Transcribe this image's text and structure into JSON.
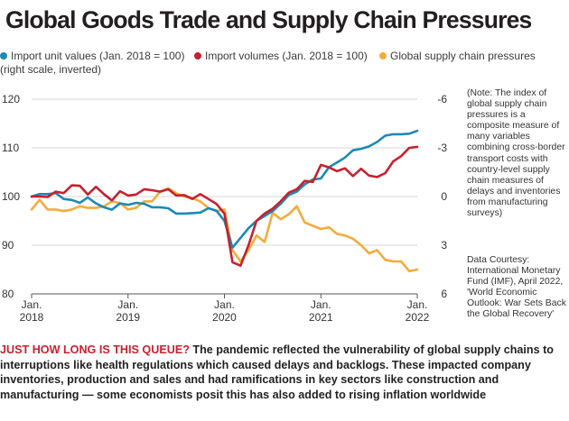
{
  "chart_data": {
    "type": "line",
    "title": "Global Goods Trade and Supply Chain Pressures",
    "x_ticks": [
      {
        "year": 2018,
        "label": [
          "Jan.",
          "2018"
        ]
      },
      {
        "year": 2019,
        "label": [
          "Jan.",
          "2019"
        ]
      },
      {
        "year": 2020,
        "label": [
          "Jan.",
          "2020"
        ]
      },
      {
        "year": 2021,
        "label": [
          "Jan.",
          "2021"
        ]
      },
      {
        "year": 2022,
        "label": [
          "Jan.",
          "2022"
        ]
      }
    ],
    "left_axis": {
      "ylim": [
        80,
        120
      ],
      "ticks": [
        "120",
        "110",
        "100",
        "90",
        "80"
      ]
    },
    "right_axis": {
      "ylim": [
        6,
        -6
      ],
      "inverted": true,
      "ticks": [
        "-6",
        "-3",
        "0",
        "3",
        "6"
      ]
    },
    "legend": [
      {
        "name": "Import unit values (Jan. 2018 = 100)",
        "color": "#1a8ab4"
      },
      {
        "name": "Import volumes (Jan. 2018 = 100)",
        "color": "#c8202e"
      },
      {
        "name": "Global supply chain pressures",
        "color": "#f2ac3b",
        "sub": "(right scale, inverted)"
      }
    ],
    "series": [
      {
        "name": "Import unit values (Jan. 2018 = 100)",
        "axis": "left",
        "color": "#1a8ab4",
        "x": [
          2018.0,
          2018.083,
          2018.167,
          2018.25,
          2018.333,
          2018.417,
          2018.5,
          2018.583,
          2018.667,
          2018.75,
          2018.833,
          2018.917,
          2019.0,
          2019.083,
          2019.167,
          2019.25,
          2019.333,
          2019.417,
          2019.5,
          2019.583,
          2019.667,
          2019.75,
          2019.833,
          2019.917,
          2020.0,
          2020.083,
          2020.167,
          2020.25,
          2020.333,
          2020.417,
          2020.5,
          2020.583,
          2020.667,
          2020.75,
          2020.833,
          2020.917,
          2021.0,
          2021.083,
          2021.167,
          2021.25,
          2021.333,
          2021.417,
          2021.5,
          2021.583,
          2021.667,
          2021.75,
          2021.833,
          2021.917,
          2022.0
        ],
        "y": [
          100,
          100.5,
          100.5,
          100.7,
          99.5,
          99.3,
          98.7,
          99.8,
          98.6,
          97.8,
          97.3,
          98.6,
          98.3,
          98.7,
          98.5,
          97.8,
          97.8,
          97.6,
          96.5,
          96.5,
          96.6,
          96.7,
          97.6,
          97.1,
          95,
          89.5,
          91.5,
          93.5,
          95,
          96,
          97,
          98.5,
          100.3,
          101,
          102.5,
          103.5,
          103.7,
          106,
          107,
          108,
          109.5,
          109.8,
          110.3,
          111.2,
          112.5,
          112.8,
          112.8,
          112.9,
          113.5
        ]
      },
      {
        "name": "Import volumes (Jan. 2018 = 100)",
        "axis": "left",
        "color": "#c8202e",
        "x": [
          2018.0,
          2018.083,
          2018.167,
          2018.25,
          2018.333,
          2018.417,
          2018.5,
          2018.583,
          2018.667,
          2018.75,
          2018.833,
          2018.917,
          2019.0,
          2019.083,
          2019.167,
          2019.25,
          2019.333,
          2019.417,
          2019.5,
          2019.583,
          2019.667,
          2019.75,
          2019.833,
          2019.917,
          2020.0,
          2020.083,
          2020.167,
          2020.25,
          2020.333,
          2020.417,
          2020.5,
          2020.583,
          2020.667,
          2020.75,
          2020.833,
          2020.917,
          2021.0,
          2021.083,
          2021.167,
          2021.25,
          2021.333,
          2021.417,
          2021.5,
          2021.583,
          2021.667,
          2021.75,
          2021.833,
          2021.917,
          2022.0
        ],
        "y": [
          100,
          100,
          99.9,
          101,
          100.7,
          102.3,
          102.2,
          100.4,
          102,
          100.5,
          99.2,
          101.1,
          100.2,
          100.4,
          101.5,
          101.3,
          101,
          101.5,
          100.2,
          100.3,
          99.5,
          100.5,
          99.5,
          98.5,
          96.5,
          86.5,
          85.8,
          90,
          95,
          96.5,
          97.5,
          99,
          100.8,
          101.5,
          103.2,
          103,
          106.5,
          106,
          105.2,
          105.8,
          104.2,
          105.7,
          104.3,
          104,
          104.8,
          107.2,
          108.3,
          110,
          110.2
        ]
      },
      {
        "name": "Global supply chain pressures",
        "axis": "right",
        "color": "#f2ac3b",
        "x": [
          2018.0,
          2018.083,
          2018.167,
          2018.25,
          2018.333,
          2018.417,
          2018.5,
          2018.583,
          2018.667,
          2018.75,
          2018.833,
          2018.917,
          2019.0,
          2019.083,
          2019.167,
          2019.25,
          2019.333,
          2019.417,
          2019.5,
          2019.583,
          2019.667,
          2019.75,
          2019.833,
          2019.917,
          2020.0,
          2020.083,
          2020.167,
          2020.25,
          2020.333,
          2020.417,
          2020.5,
          2020.583,
          2020.667,
          2020.75,
          2020.833,
          2020.917,
          2021.0,
          2021.083,
          2021.167,
          2021.25,
          2021.333,
          2021.417,
          2021.5,
          2021.583,
          2021.667,
          2021.75,
          2021.833,
          2021.917,
          2022.0
        ],
        "y": [
          0.8,
          0.2,
          0.8,
          0.8,
          0.9,
          0.8,
          0.6,
          0.7,
          0.7,
          0.6,
          0.3,
          0.4,
          0.8,
          0.7,
          0.3,
          0.3,
          -0.3,
          -0.5,
          -0.2,
          0,
          0.1,
          0.3,
          0.7,
          0.9,
          0.8,
          3.3,
          4,
          3.3,
          2.4,
          2.8,
          1,
          1.4,
          1.1,
          0.6,
          1.6,
          1.8,
          2,
          1.9,
          2.3,
          2.4,
          2.6,
          3,
          3.5,
          3.3,
          3.9,
          4,
          4,
          4.6,
          4.5
        ]
      }
    ]
  },
  "note": "(Note: The index of global supply chain pressures is a composite measure of many variables combining cross-border transport costs with country-level supply chain measures of delays and inventories from manufacturing surveys)",
  "credit": "Data Courtesy: International Monetary Fund (IMF), April 2022, 'World Economic Outlook: War Sets Back the Global Recovery'",
  "caption": {
    "lead": "JUST HOW LONG IS THIS QUEUE?",
    "body": "The pandemic reflected the vulnerability of global supply chains to interruptions like health regulations which caused delays and backlogs. These impacted company inventories, production and sales and had ramifications in key sectors like construction and manufacturing — some economists posit this has also added to rising inflation worldwide"
  }
}
